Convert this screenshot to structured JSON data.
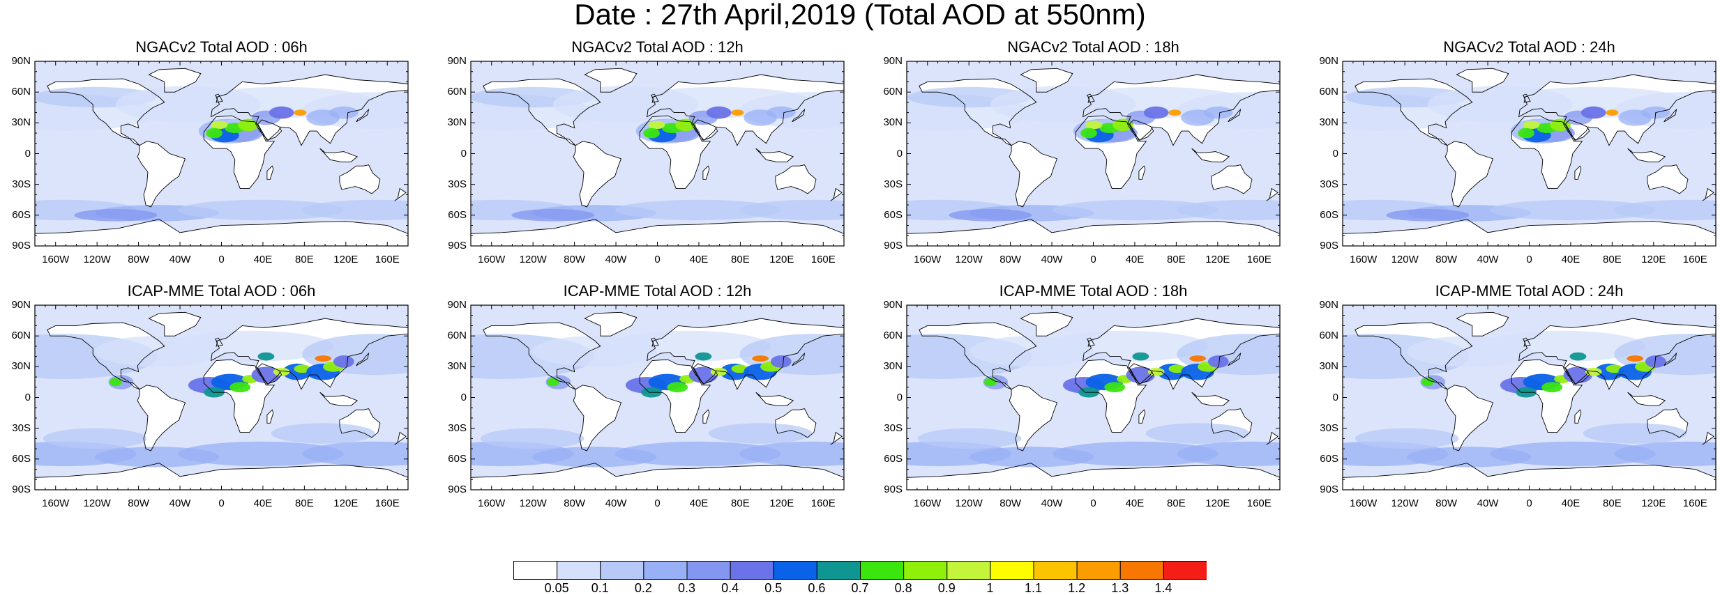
{
  "title": "Date : 27th April,2019 (Total AOD at 550nm)",
  "panels": [
    {
      "title": "NGACv2 Total AOD : 06h",
      "model": "NGACv2"
    },
    {
      "title": "NGACv2 Total AOD : 12h",
      "model": "NGACv2"
    },
    {
      "title": "NGACv2 Total AOD : 18h",
      "model": "NGACv2"
    },
    {
      "title": "NGACv2 Total AOD : 24h",
      "model": "NGACv2"
    },
    {
      "title": "ICAP-MME Total AOD : 06h",
      "model": "ICAP-MME"
    },
    {
      "title": "ICAP-MME Total AOD : 12h",
      "model": "ICAP-MME"
    },
    {
      "title": "ICAP-MME Total AOD : 18h",
      "model": "ICAP-MME"
    },
    {
      "title": "ICAP-MME Total AOD : 24h",
      "model": "ICAP-MME"
    }
  ],
  "lat_labels": [
    "90N",
    "60N",
    "30N",
    "0",
    "30S",
    "60S",
    "90S"
  ],
  "lon_labels": [
    "160W",
    "120W",
    "80W",
    "40W",
    "0",
    "40E",
    "80E",
    "120E",
    "160E"
  ],
  "colorbar": {
    "labels": [
      "0.05",
      "0.1",
      "0.2",
      "0.3",
      "0.4",
      "0.5",
      "0.6",
      "0.7",
      "0.8",
      "0.9",
      "1",
      "1.1",
      "1.2",
      "1.3",
      "1.4"
    ],
    "colors": [
      "#ffffff",
      "#d5e0fb",
      "#b7c9f7",
      "#98b0f5",
      "#8397f0",
      "#6a73e8",
      "#0a62e8",
      "#0f9690",
      "#3be60f",
      "#8ff00a",
      "#c3f53a",
      "#fdfd00",
      "#fcc400",
      "#fb9d00",
      "#f87700",
      "#f41e16"
    ]
  },
  "map_colors": {
    "ocean_light": "#dbe4fb",
    "land_white": "#ffffff",
    "low_aod": "#c6d5f8",
    "mid_aod": "#97aef3",
    "coast": "#000000"
  }
}
